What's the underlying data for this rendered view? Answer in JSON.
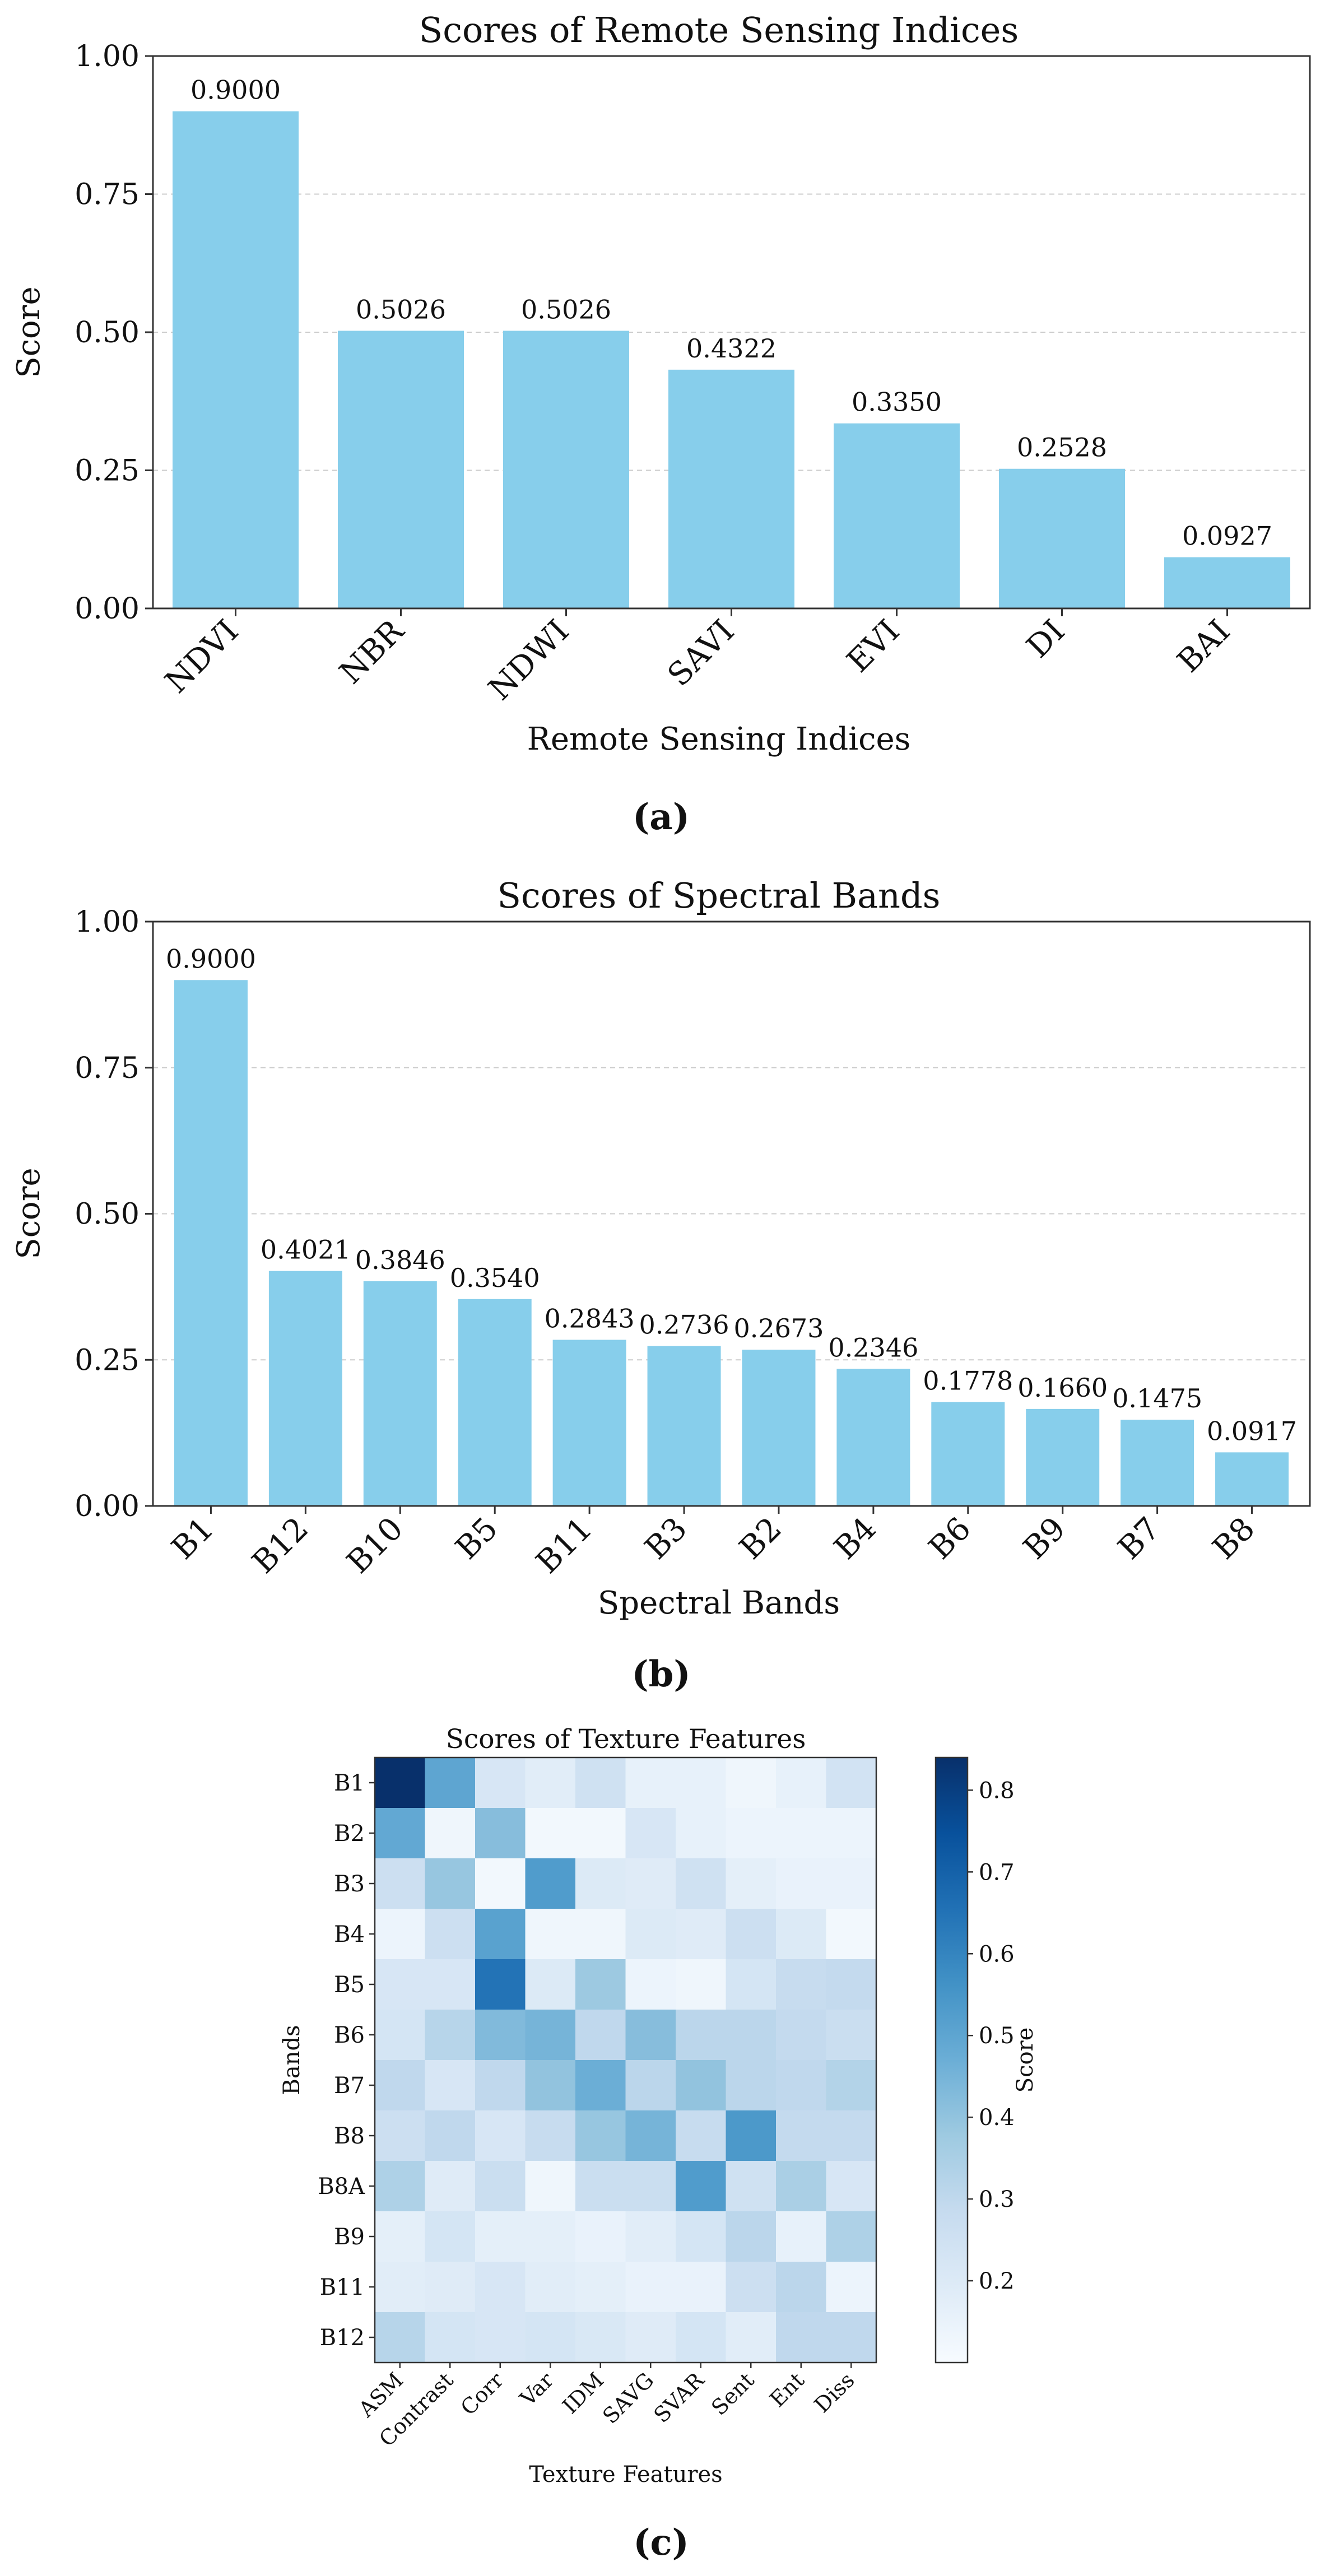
{
  "chart_data": [
    {
      "type": "bar",
      "title": "Scores of Remote Sensing Indices",
      "xlabel": "Remote Sensing Indices",
      "ylabel": "Score",
      "ylim": [
        0,
        1
      ],
      "yticks": [
        "0.00",
        "0.25",
        "0.50",
        "0.75",
        "1.00"
      ],
      "categories": [
        "NDVI",
        "NBR",
        "NDWI",
        "SAVI",
        "EVI",
        "DI",
        "BAI"
      ],
      "values": [
        0.9,
        0.5026,
        0.5026,
        0.4322,
        0.335,
        0.2528,
        0.0927
      ],
      "data_labels": [
        "0.9000",
        "0.5026",
        "0.5026",
        "0.4322",
        "0.3350",
        "0.2528",
        "0.0927"
      ],
      "grid": "horizontal dashed",
      "bar_color": "#87ceeb",
      "caption": "(a)"
    },
    {
      "type": "bar",
      "title": "Scores of Spectral Bands",
      "xlabel": "Spectral Bands",
      "ylabel": "Score",
      "ylim": [
        0,
        1
      ],
      "yticks": [
        "0.00",
        "0.25",
        "0.50",
        "0.75",
        "1.00"
      ],
      "categories": [
        "B1",
        "B12",
        "B10",
        "B5",
        "B11",
        "B3",
        "B2",
        "B4",
        "B6",
        "B9",
        "B7",
        "B8"
      ],
      "values": [
        0.9,
        0.4021,
        0.3846,
        0.354,
        0.2843,
        0.2736,
        0.2673,
        0.2346,
        0.1778,
        0.166,
        0.1475,
        0.0917
      ],
      "data_labels": [
        "0.9000",
        "0.4021",
        "0.3846",
        "0.3540",
        "0.2843",
        "0.2736",
        "0.2673",
        "0.2346",
        "0.1778",
        "0.1660",
        "0.1475",
        "0.0917"
      ],
      "grid": "horizontal dashed",
      "bar_color": "#87ceeb",
      "caption": "(b)"
    },
    {
      "type": "heatmap",
      "title": "Scores of Texture Features",
      "xlabel": "Texture Features",
      "ylabel": "Bands",
      "x": [
        "ASM",
        "Contrast",
        "Corr",
        "Var",
        "IDM",
        "SAVG",
        "SVAR",
        "Sent",
        "Ent",
        "Diss"
      ],
      "y": [
        "B1",
        "B2",
        "B3",
        "B4",
        "B5",
        "B6",
        "B7",
        "B8",
        "B8A",
        "B9",
        "B11",
        "B12"
      ],
      "values": [
        [
          0.84,
          0.5,
          0.22,
          0.18,
          0.25,
          0.16,
          0.16,
          0.13,
          0.16,
          0.24
        ],
        [
          0.49,
          0.13,
          0.42,
          0.12,
          0.12,
          0.22,
          0.16,
          0.14,
          0.14,
          0.14
        ],
        [
          0.26,
          0.39,
          0.12,
          0.53,
          0.2,
          0.19,
          0.25,
          0.17,
          0.15,
          0.15
        ],
        [
          0.14,
          0.26,
          0.51,
          0.13,
          0.13,
          0.2,
          0.19,
          0.26,
          0.2,
          0.12
        ],
        [
          0.22,
          0.22,
          0.65,
          0.2,
          0.38,
          0.14,
          0.13,
          0.23,
          0.28,
          0.29
        ],
        [
          0.23,
          0.32,
          0.43,
          0.45,
          0.3,
          0.42,
          0.31,
          0.31,
          0.29,
          0.27
        ],
        [
          0.3,
          0.22,
          0.3,
          0.4,
          0.47,
          0.31,
          0.4,
          0.31,
          0.3,
          0.33
        ],
        [
          0.26,
          0.3,
          0.22,
          0.28,
          0.39,
          0.45,
          0.28,
          0.54,
          0.29,
          0.29
        ],
        [
          0.34,
          0.19,
          0.27,
          0.13,
          0.27,
          0.27,
          0.53,
          0.25,
          0.35,
          0.22
        ],
        [
          0.17,
          0.23,
          0.17,
          0.17,
          0.15,
          0.18,
          0.23,
          0.31,
          0.16,
          0.34
        ],
        [
          0.18,
          0.19,
          0.22,
          0.18,
          0.17,
          0.15,
          0.15,
          0.26,
          0.31,
          0.14
        ],
        [
          0.32,
          0.23,
          0.22,
          0.23,
          0.21,
          0.19,
          0.23,
          0.18,
          0.3,
          0.3
        ]
      ],
      "colorbar_label": "Score",
      "colorbar_range": [
        0.1,
        0.84
      ],
      "colorbar_ticks": [
        "0.2",
        "0.3",
        "0.4",
        "0.5",
        "0.6",
        "0.7",
        "0.8"
      ],
      "colormap": "Blues",
      "caption": "(c)"
    }
  ]
}
